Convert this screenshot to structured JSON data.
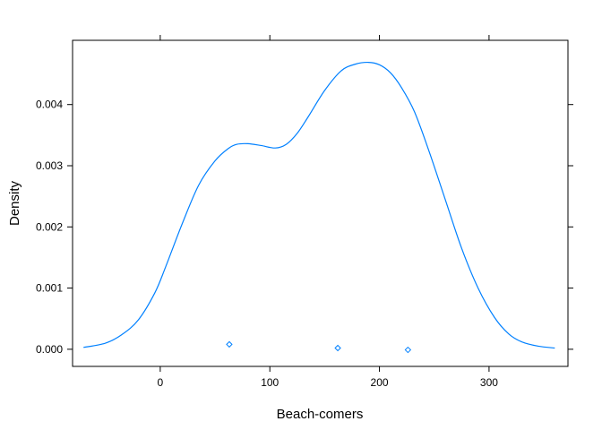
{
  "chart_data": {
    "type": "line",
    "title": "",
    "xlabel": "Beach-comers",
    "ylabel": "Density",
    "xlim": [
      -80,
      372
    ],
    "ylim": [
      -0.00028,
      0.00505
    ],
    "x_ticks": [
      0,
      100,
      200,
      300
    ],
    "x_tick_labels": [
      "0",
      "100",
      "200",
      "300"
    ],
    "y_ticks": [
      0.0,
      0.001,
      0.002,
      0.003,
      0.004
    ],
    "y_tick_labels": [
      "0.000",
      "0.001",
      "0.002",
      "0.003",
      "0.004"
    ],
    "grid": false,
    "legend": "none",
    "color": "#0080ff",
    "series": [
      {
        "x": [
          -70,
          -50,
          -35,
          -20,
          -5,
          5,
          20,
          35,
          50,
          62,
          70,
          80,
          92,
          105,
          115,
          125,
          135,
          150,
          165,
          178,
          190,
          200,
          210,
          220,
          232,
          245,
          260,
          275,
          290,
          305,
          318,
          330,
          345,
          360
        ],
        "y": [
          3e-05,
          0.0001,
          0.00024,
          0.00048,
          0.00092,
          0.00135,
          0.00205,
          0.00268,
          0.00308,
          0.00328,
          0.00335,
          0.00336,
          0.00333,
          0.00329,
          0.00335,
          0.00353,
          0.0038,
          0.00423,
          0.00455,
          0.00466,
          0.00469,
          0.00465,
          0.00452,
          0.00428,
          0.00388,
          0.00325,
          0.00245,
          0.00165,
          0.001,
          0.00052,
          0.00025,
          0.00012,
          5e-05,
          2e-05
        ]
      }
    ],
    "points": [
      {
        "x": 63,
        "y": 8e-05
      },
      {
        "x": 162,
        "y": 2e-05
      },
      {
        "x": 226,
        "y": -1e-05
      }
    ]
  }
}
